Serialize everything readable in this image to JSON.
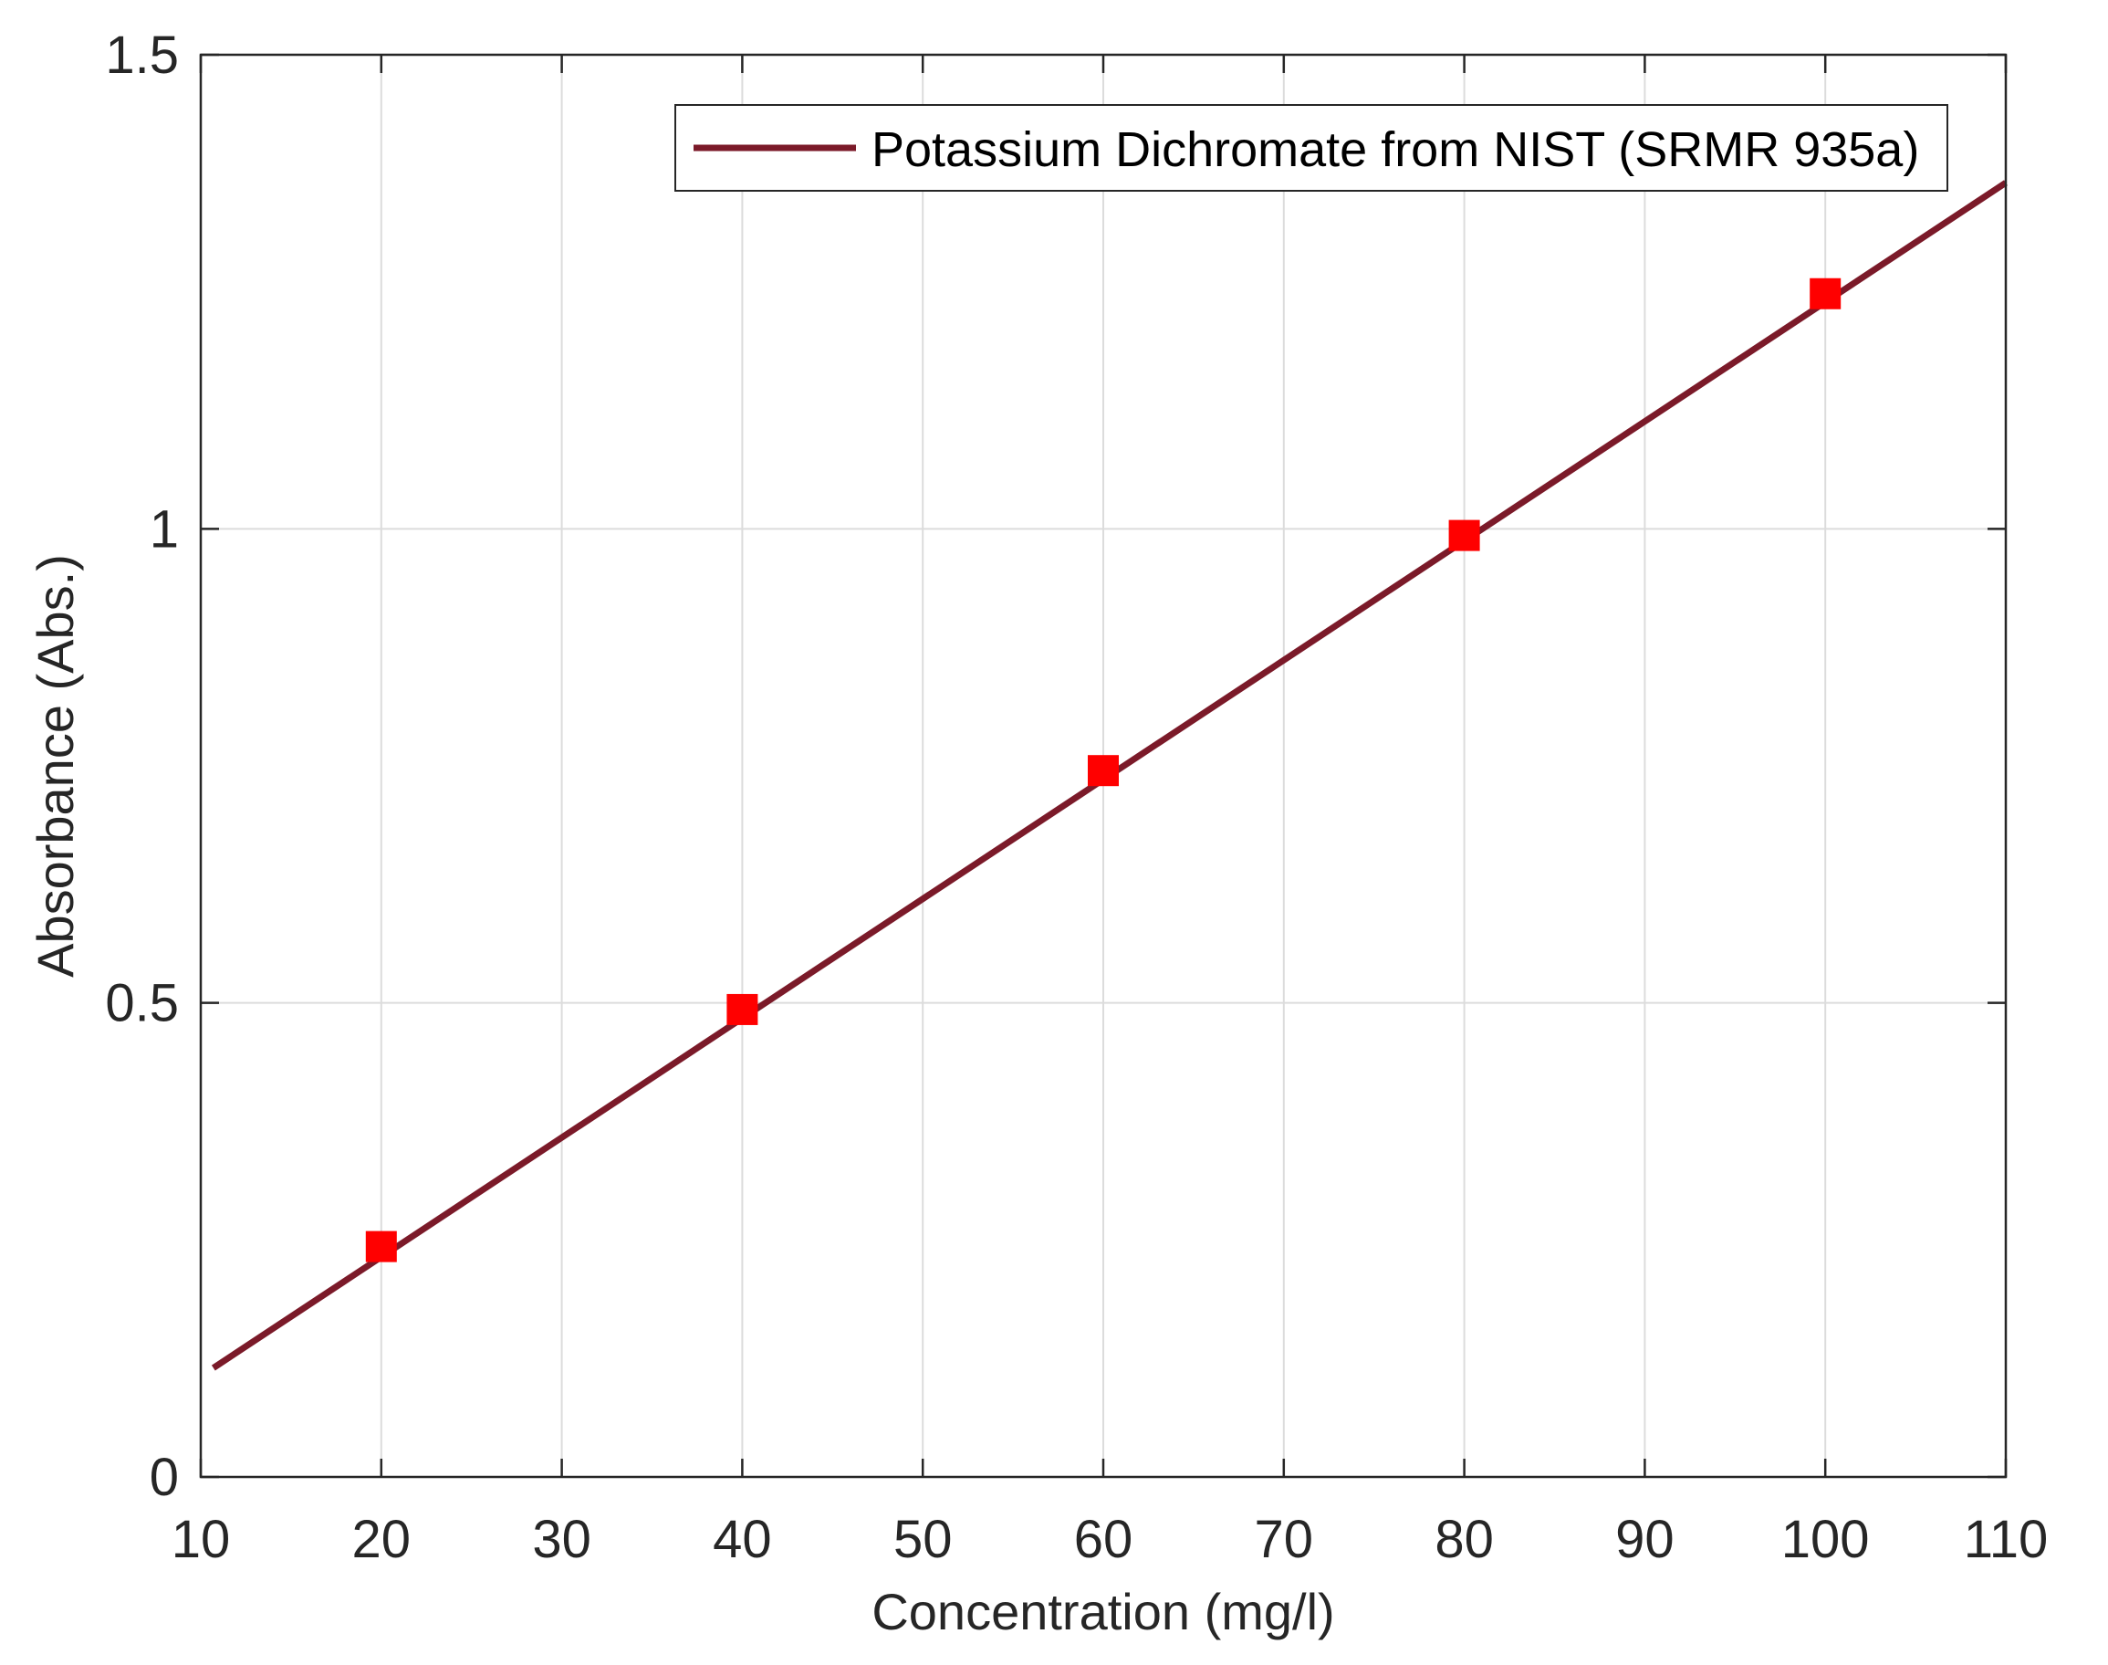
{
  "chart_data": {
    "type": "line",
    "xlabel": "Concentration (mg/l)",
    "ylabel": "Absorbance (Abs.)",
    "xlim": [
      10,
      110
    ],
    "ylim": [
      0,
      1.5
    ],
    "x_ticks": [
      10,
      20,
      30,
      40,
      50,
      60,
      70,
      80,
      90,
      100,
      110
    ],
    "y_ticks": [
      0,
      0.5,
      1,
      1.5
    ],
    "x_tick_labels": [
      "10",
      "20",
      "30",
      "40",
      "50",
      "60",
      "70",
      "80",
      "90",
      "100",
      "110"
    ],
    "y_tick_labels": [
      "0",
      "0.5",
      "1",
      "1.5"
    ],
    "grid": true,
    "legend_position": "top-right",
    "series": [
      {
        "name": "Potassium Dichromate from NIST (SRMR 935a)",
        "kind": "fit-line",
        "color": "#7b1a29",
        "x": [
          10.7,
          110
        ],
        "y": [
          0.115,
          1.365
        ]
      },
      {
        "kind": "markers",
        "marker": "square",
        "color": "#ff0000",
        "x": [
          20,
          40,
          60,
          80,
          100
        ],
        "y": [
          0.243,
          0.493,
          0.745,
          0.993,
          1.248
        ]
      }
    ]
  }
}
